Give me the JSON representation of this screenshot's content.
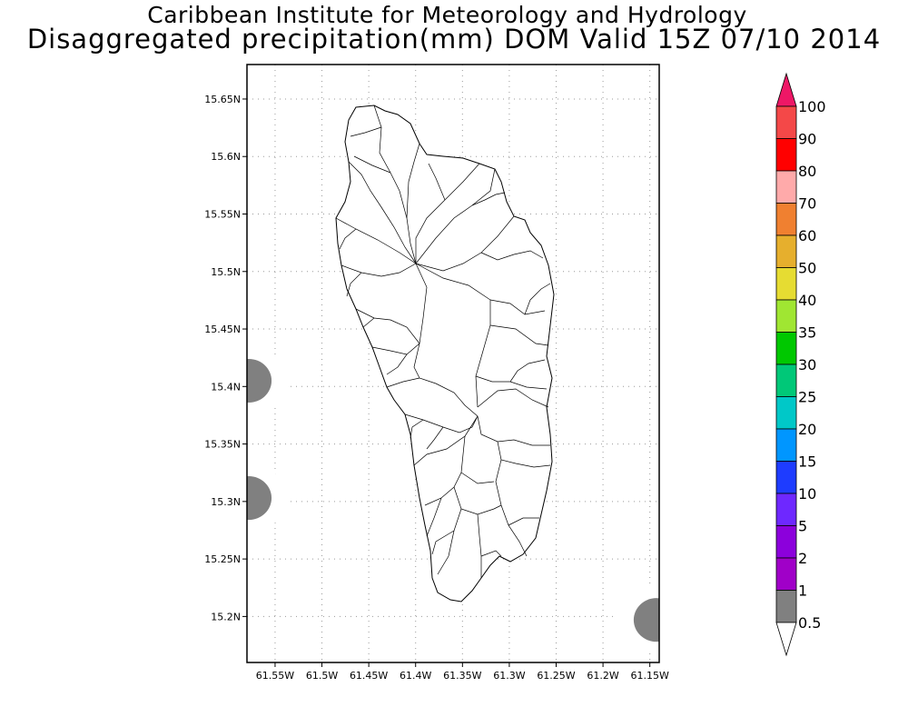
{
  "header": {
    "institute": "Caribbean Institute for Meteorology and Hydrology",
    "title": "Disaggregated precipitation(mm) DOM Valid 15Z 07/10 2014"
  },
  "map": {
    "region": "Dominica",
    "lon_range": [
      -61.58,
      -61.14
    ],
    "lat_range": [
      15.16,
      15.68
    ],
    "lat_ticks": [
      {
        "value": 15.65,
        "label": "15.65N"
      },
      {
        "value": 15.6,
        "label": "15.6N"
      },
      {
        "value": 15.55,
        "label": "15.55N"
      },
      {
        "value": 15.5,
        "label": "15.5N"
      },
      {
        "value": 15.45,
        "label": "15.45N"
      },
      {
        "value": 15.4,
        "label": "15.4N"
      },
      {
        "value": 15.35,
        "label": "15.35N"
      },
      {
        "value": 15.3,
        "label": "15.3N"
      },
      {
        "value": 15.25,
        "label": "15.25N"
      },
      {
        "value": 15.2,
        "label": "15.2N"
      }
    ],
    "lon_ticks": [
      {
        "value": -61.55,
        "label": "61.55W"
      },
      {
        "value": -61.5,
        "label": "61.5W"
      },
      {
        "value": -61.45,
        "label": "61.45W"
      },
      {
        "value": -61.4,
        "label": "61.4W"
      },
      {
        "value": -61.35,
        "label": "61.35W"
      },
      {
        "value": -61.3,
        "label": "61.3W"
      },
      {
        "value": -61.25,
        "label": "61.25W"
      },
      {
        "value": -61.2,
        "label": "61.2W"
      },
      {
        "value": -61.15,
        "label": "61.15W"
      }
    ],
    "grid": true,
    "precip_cells": [
      {
        "lon": -61.578,
        "lat": 15.405,
        "outer_level": "0.5",
        "inner_level": "1"
      },
      {
        "lon": -61.578,
        "lat": 15.303,
        "outer_level": "0.5",
        "inner_level": "1"
      },
      {
        "lon": -61.143,
        "lat": 15.197,
        "outer_level": "0.5",
        "inner_level": "1"
      }
    ]
  },
  "colorbar": {
    "labels": [
      "100",
      "90",
      "80",
      "70",
      "60",
      "50",
      "40",
      "35",
      "30",
      "25",
      "20",
      "15",
      "10",
      "5",
      "2",
      "1",
      "0.5"
    ],
    "colors": [
      "#ee1766",
      "#f44848",
      "#ff0000",
      "#ffaaaa",
      "#f08030",
      "#e6af2d",
      "#e6dc32",
      "#a0e632",
      "#00c800",
      "#00c878",
      "#00c8c8",
      "#0096ff",
      "#1e3cff",
      "#6e28ff",
      "#8c00dc",
      "#a000c8",
      "#808080",
      "#ffffff"
    ]
  }
}
